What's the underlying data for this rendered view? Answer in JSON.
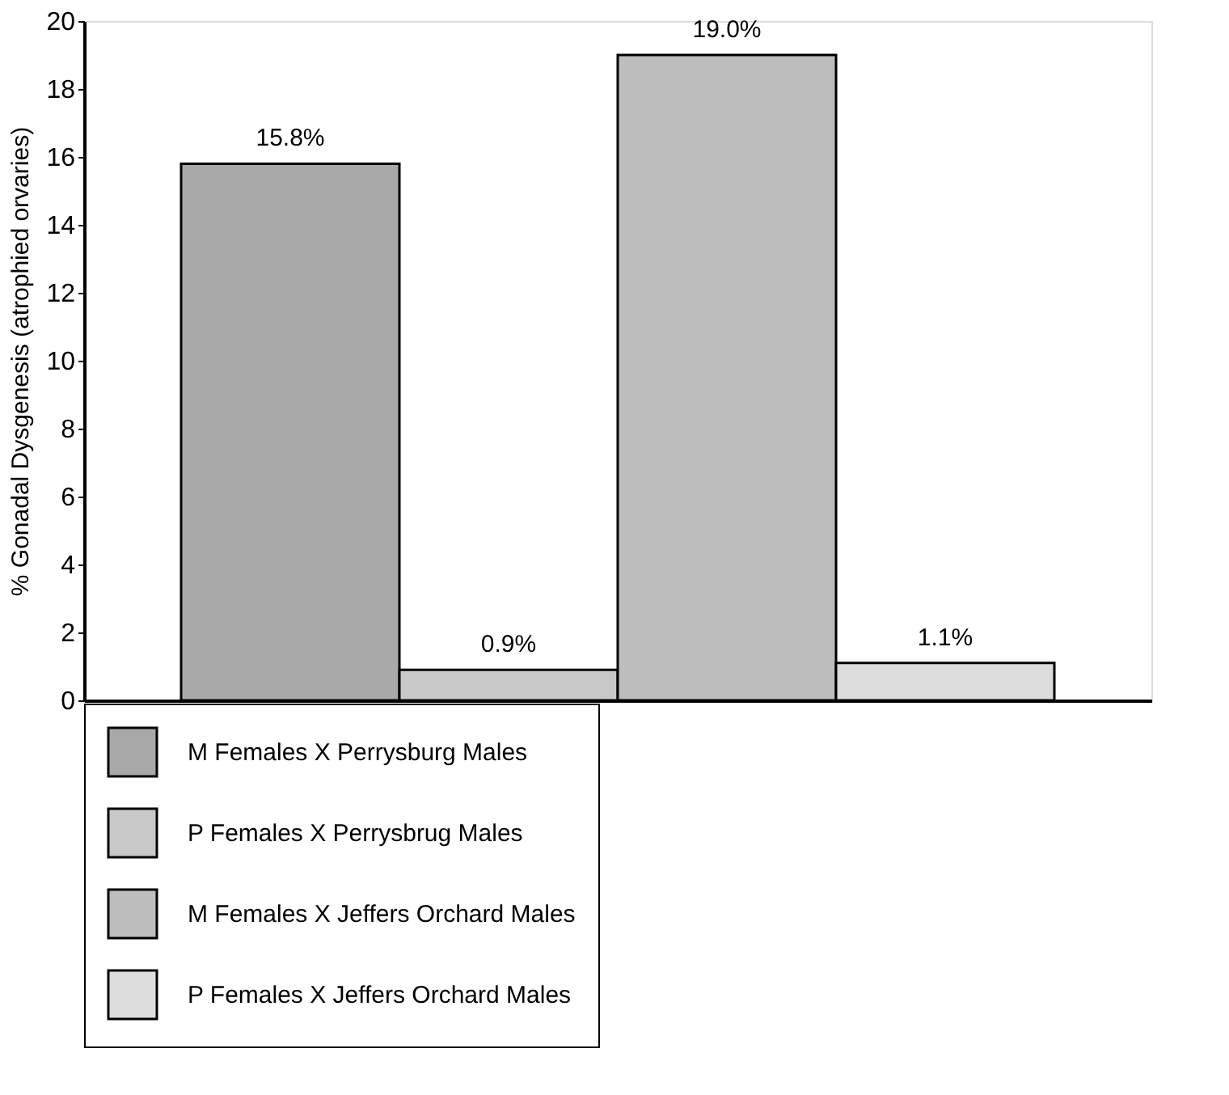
{
  "chart_data": {
    "type": "bar",
    "ylabel": "% Gonadal Dysgenesis (atrophied orvaries)",
    "categories": [
      null
    ],
    "series": [
      {
        "name": "M Females X Perrysburg Males",
        "color": "#a9a9a9",
        "values": [
          15.8
        ],
        "value_labels": [
          "15.8%"
        ]
      },
      {
        "name": "P Females X Perrysbrug Males",
        "color": "#c8c8c8",
        "values": [
          0.9
        ],
        "value_labels": [
          "0.9%"
        ]
      },
      {
        "name": "M Females X Jeffers Orchard Males",
        "color": "#bdbdbd",
        "values": [
          19.0
        ],
        "value_labels": [
          "19.0%"
        ]
      },
      {
        "name": "P Females X Jeffers Orchard Males",
        "color": "#dcdcdc",
        "values": [
          1.1
        ],
        "value_labels": [
          "1.1%"
        ]
      }
    ],
    "ylim": [
      0,
      20
    ],
    "yticks": [
      0,
      2,
      4,
      6,
      8,
      10,
      12,
      14,
      16,
      18,
      20
    ],
    "grid": false,
    "legend": "bottom"
  }
}
